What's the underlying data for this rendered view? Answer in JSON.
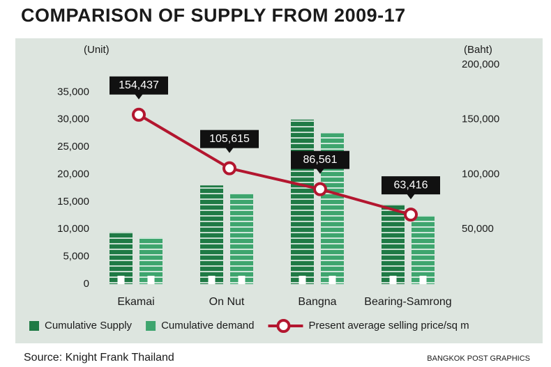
{
  "chart_data": {
    "type": "bar",
    "title": "COMPARISON OF SUPPLY FROM 2009-17",
    "y_label": "(Unit)",
    "y2_label": "(Baht)",
    "categories": [
      "Ekamai",
      "On Nut",
      "Bangna",
      "Bearing-Samrong"
    ],
    "series": [
      {
        "name": "Cumulative Supply",
        "type": "bar",
        "color": "#1f7a45",
        "values": [
          9500,
          18000,
          30000,
          14500
        ]
      },
      {
        "name": "Cumulative demand",
        "type": "bar",
        "color": "#3ea56e",
        "values": [
          8500,
          16500,
          27500,
          12500
        ]
      },
      {
        "name": "Present average selling price/sq m",
        "type": "line",
        "axis": "y2",
        "color": "#b3162f",
        "values": [
          154437,
          105615,
          86561,
          63416
        ],
        "value_labels": [
          "154,437",
          "105,615",
          "86,561",
          "63,416"
        ]
      }
    ],
    "ylim": [
      0,
      40000
    ],
    "yticks": [
      0,
      {
        "value": 5000,
        "label": "5,000"
      },
      {
        "value": 10000,
        "label": "10,000"
      },
      {
        "value": 15000,
        "label": "15,000"
      },
      {
        "value": 20000,
        "label": "20,000"
      },
      {
        "value": 25000,
        "label": "25,000"
      },
      {
        "value": 30000,
        "label": "30,000"
      },
      {
        "value": 35000,
        "label": "35,000"
      }
    ],
    "y2lim": [
      0,
      200000
    ],
    "y2ticks": [
      {
        "value": 50000,
        "label": "50,000"
      },
      {
        "value": 100000,
        "label": "100,000"
      },
      {
        "value": 150000,
        "label": "150,000"
      },
      {
        "value": 200000,
        "label": "200,000"
      }
    ],
    "source": "Source: Knight Frank Thailand",
    "credit": "BANGKOK POST GRAPHICS"
  }
}
